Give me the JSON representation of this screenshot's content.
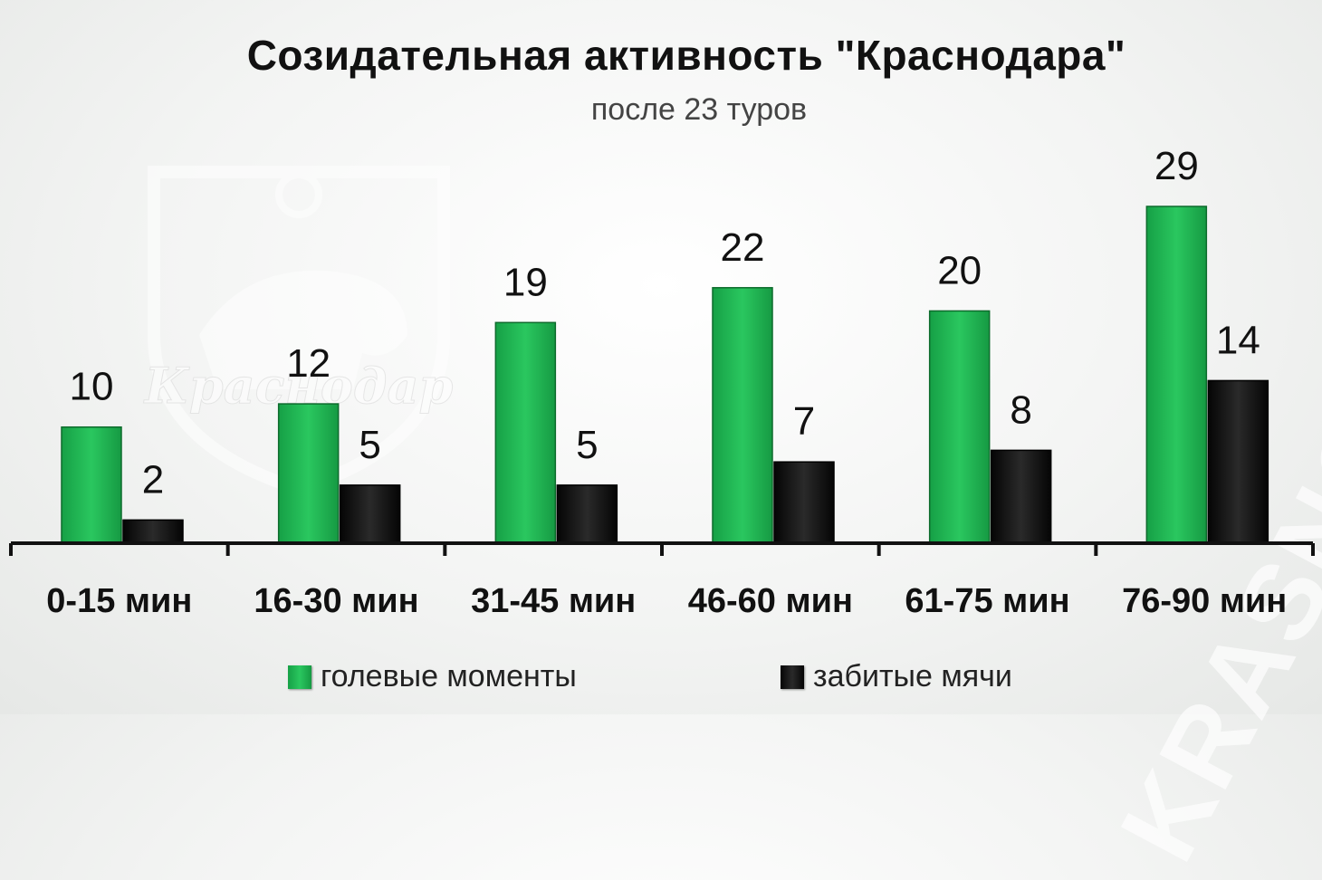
{
  "title": "Созидательная активность \"Краснодара\"",
  "subtitle": "после 23 туров",
  "watermark": {
    "logo_text": "Краснодар",
    "side_text": "KRASNODAR FC"
  },
  "colors": {
    "green": "#1fb552",
    "black": "#111111"
  },
  "chart_data": {
    "type": "bar",
    "title": "Созидательная активность \"Краснодара\"",
    "subtitle": "после 23 туров",
    "categories": [
      "0-15 мин",
      "16-30 мин",
      "31-45 мин",
      "46-60 мин",
      "61-75 мин",
      "76-90 мин"
    ],
    "series": [
      {
        "name": "голевые моменты",
        "color": "#1fb552",
        "values": [
          10,
          12,
          19,
          22,
          20,
          29
        ]
      },
      {
        "name": "забитые мячи",
        "color": "#111111",
        "values": [
          2,
          5,
          5,
          7,
          8,
          14
        ]
      }
    ],
    "ylim": [
      0,
      29
    ],
    "grid": false,
    "legend_position": "bottom",
    "data_labels": true
  }
}
